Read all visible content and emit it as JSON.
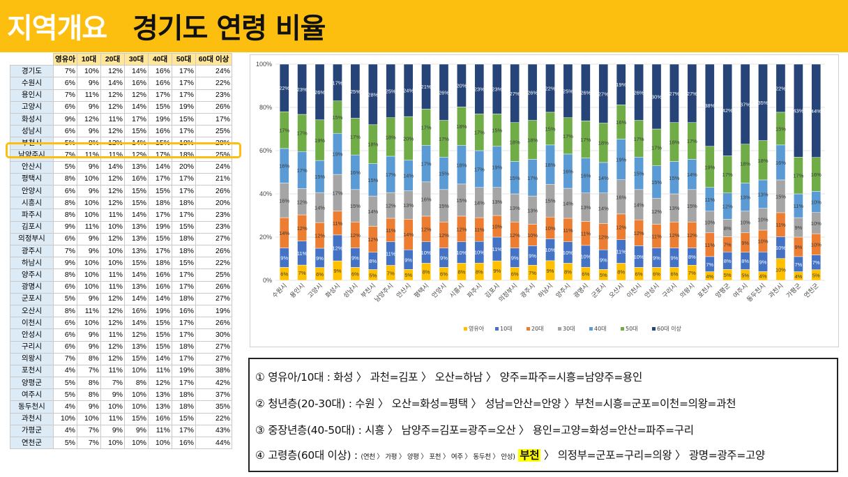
{
  "header": {
    "title_part1": "지역개요",
    "title_part2": "경기도 연령 비율"
  },
  "table": {
    "columns": [
      "영유아",
      "10대",
      "20대",
      "30대",
      "40대",
      "50대",
      "60대 이상"
    ],
    "rows": [
      [
        "경기도",
        "7%",
        "10%",
        "12%",
        "14%",
        "16%",
        "17%",
        "24%"
      ],
      [
        "수원시",
        "6%",
        "9%",
        "14%",
        "16%",
        "16%",
        "17%",
        "22%"
      ],
      [
        "용인시",
        "7%",
        "11%",
        "12%",
        "12%",
        "17%",
        "17%",
        "23%"
      ],
      [
        "고양시",
        "6%",
        "9%",
        "12%",
        "14%",
        "15%",
        "19%",
        "26%"
      ],
      [
        "화성시",
        "9%",
        "12%",
        "11%",
        "17%",
        "19%",
        "15%",
        "17%"
      ],
      [
        "성남시",
        "6%",
        "9%",
        "12%",
        "15%",
        "16%",
        "17%",
        "25%"
      ],
      [
        "부천시",
        "5%",
        "8%",
        "12%",
        "14%",
        "15%",
        "18%",
        "28%"
      ],
      [
        "남양주시",
        "7%",
        "11%",
        "11%",
        "12%",
        "17%",
        "18%",
        "25%"
      ],
      [
        "안산시",
        "5%",
        "9%",
        "14%",
        "13%",
        "14%",
        "20%",
        "24%"
      ],
      [
        "평택시",
        "8%",
        "10%",
        "12%",
        "16%",
        "17%",
        "17%",
        "21%"
      ],
      [
        "안양시",
        "6%",
        "9%",
        "12%",
        "15%",
        "15%",
        "17%",
        "26%"
      ],
      [
        "시흥시",
        "8%",
        "10%",
        "12%",
        "15%",
        "18%",
        "18%",
        "20%"
      ],
      [
        "파주시",
        "8%",
        "10%",
        "11%",
        "14%",
        "17%",
        "17%",
        "23%"
      ],
      [
        "김포시",
        "9%",
        "11%",
        "10%",
        "13%",
        "19%",
        "15%",
        "23%"
      ],
      [
        "의정부시",
        "6%",
        "9%",
        "12%",
        "13%",
        "15%",
        "18%",
        "27%"
      ],
      [
        "광주시",
        "7%",
        "9%",
        "10%",
        "13%",
        "17%",
        "18%",
        "26%"
      ],
      [
        "하남시",
        "9%",
        "10%",
        "10%",
        "15%",
        "18%",
        "15%",
        "22%"
      ],
      [
        "양주시",
        "8%",
        "10%",
        "11%",
        "14%",
        "16%",
        "17%",
        "25%"
      ],
      [
        "광명시",
        "6%",
        "10%",
        "11%",
        "13%",
        "16%",
        "17%",
        "26%"
      ],
      [
        "군포시",
        "5%",
        "9%",
        "12%",
        "14%",
        "14%",
        "18%",
        "27%"
      ],
      [
        "오산시",
        "8%",
        "11%",
        "12%",
        "16%",
        "19%",
        "16%",
        "19%"
      ],
      [
        "이천시",
        "6%",
        "10%",
        "12%",
        "14%",
        "15%",
        "17%",
        "26%"
      ],
      [
        "안성시",
        "6%",
        "9%",
        "11%",
        "12%",
        "15%",
        "17%",
        "30%"
      ],
      [
        "구리시",
        "6%",
        "9%",
        "12%",
        "13%",
        "15%",
        "18%",
        "27%"
      ],
      [
        "의왕시",
        "7%",
        "8%",
        "12%",
        "15%",
        "14%",
        "17%",
        "27%"
      ],
      [
        "포천시",
        "4%",
        "7%",
        "11%",
        "10%",
        "11%",
        "19%",
        "38%"
      ],
      [
        "양평군",
        "5%",
        "8%",
        "7%",
        "8%",
        "12%",
        "17%",
        "42%"
      ],
      [
        "여주시",
        "5%",
        "8%",
        "9%",
        "10%",
        "13%",
        "18%",
        "37%"
      ],
      [
        "동두천시",
        "4%",
        "9%",
        "10%",
        "10%",
        "13%",
        "18%",
        "35%"
      ],
      [
        "과천시",
        "10%",
        "10%",
        "11%",
        "15%",
        "16%",
        "15%",
        "22%"
      ],
      [
        "가평군",
        "4%",
        "7%",
        "9%",
        "9%",
        "11%",
        "17%",
        "43%"
      ],
      [
        "연천군",
        "5%",
        "7%",
        "10%",
        "10%",
        "10%",
        "16%",
        "44%"
      ]
    ]
  },
  "chart_data": {
    "type": "bar",
    "stacked": "percent",
    "categories": [
      "수원시",
      "용인시",
      "고양시",
      "화성시",
      "성남시",
      "부천시",
      "남양주시",
      "안산시",
      "평택시",
      "안양시",
      "시흥시",
      "파주시",
      "김포시",
      "의정부시",
      "광주시",
      "하남시",
      "양주시",
      "광명시",
      "군포시",
      "오산시",
      "이천시",
      "안성시",
      "구리시",
      "의왕시",
      "포천시",
      "양평군",
      "여주시",
      "동두천시",
      "과천시",
      "가평군",
      "연천군"
    ],
    "series": [
      {
        "name": "영유아",
        "color": "#FFC000",
        "values": [
          6,
          7,
          6,
          9,
          6,
          5,
          7,
          5,
          8,
          6,
          8,
          8,
          9,
          6,
          7,
          9,
          8,
          6,
          5,
          8,
          6,
          6,
          6,
          7,
          4,
          5,
          5,
          4,
          10,
          4,
          5
        ]
      },
      {
        "name": "10대",
        "color": "#4472C4",
        "values": [
          9,
          11,
          9,
          12,
          9,
          8,
          11,
          9,
          10,
          9,
          10,
          10,
          11,
          9,
          9,
          10,
          10,
          10,
          9,
          11,
          10,
          9,
          9,
          8,
          7,
          8,
          8,
          9,
          10,
          7,
          7
        ]
      },
      {
        "name": "20대",
        "color": "#ED7D31",
        "values": [
          14,
          12,
          12,
          11,
          12,
          12,
          11,
          14,
          12,
          12,
          12,
          11,
          10,
          12,
          10,
          10,
          11,
          11,
          12,
          12,
          12,
          11,
          12,
          12,
          11,
          7,
          9,
          10,
          11,
          9,
          10
        ]
      },
      {
        "name": "30대",
        "color": "#A5A5A5",
        "values": [
          16,
          12,
          14,
          17,
          15,
          14,
          12,
          13,
          16,
          15,
          15,
          14,
          13,
          13,
          13,
          15,
          14,
          13,
          14,
          16,
          14,
          12,
          13,
          15,
          10,
          8,
          10,
          10,
          15,
          9,
          10
        ]
      },
      {
        "name": "40대",
        "color": "#5B9BD5",
        "values": [
          16,
          17,
          15,
          19,
          16,
          15,
          17,
          14,
          17,
          15,
          18,
          17,
          19,
          15,
          17,
          18,
          16,
          16,
          14,
          19,
          15,
          15,
          15,
          14,
          11,
          12,
          13,
          13,
          16,
          11,
          10
        ]
      },
      {
        "name": "50대",
        "color": "#70AD47",
        "values": [
          17,
          17,
          19,
          15,
          17,
          18,
          18,
          20,
          17,
          17,
          18,
          17,
          15,
          18,
          18,
          15,
          17,
          17,
          18,
          16,
          17,
          17,
          18,
          17,
          19,
          17,
          18,
          18,
          15,
          17,
          16
        ]
      },
      {
        "name": "60대 이상",
        "color": "#264478",
        "values": [
          22,
          23,
          26,
          17,
          25,
          28,
          25,
          24,
          21,
          26,
          20,
          23,
          23,
          27,
          26,
          22,
          25,
          26,
          27,
          19,
          26,
          30,
          27,
          27,
          38,
          42,
          37,
          35,
          22,
          43,
          44
        ]
      }
    ],
    "y_ticks": [
      "0%",
      "20%",
      "40%",
      "60%",
      "80%",
      "100%"
    ],
    "ylim": [
      0,
      100
    ],
    "legend_position": "bottom"
  },
  "notes": {
    "line1": "① 영유아/10대 : 화성 〉 과천=김포 〉 오산=하남 〉 양주=파주=시흥=남양주=용인",
    "line2": "② 청년층(20-30대) : 수원 〉 오산=화성=평택 〉 성남=안산=안양 〉부천=시흥=군포=이천=의왕=과천",
    "line3": "③ 중장년층(40-50대) : 시흥 〉 남양주=김포=광주=오산 〉 용인=고양=화성=안산=파주=구리",
    "line4_prefix": "④ 고령층(60대 이상) : ",
    "line4_small": "(연천 〉 가평 〉 양평 〉 포천 〉 여주 〉 동두천 〉 안성)",
    "line4_highlight": "부천",
    "line4_suffix": " 〉 의정부=군포=구리=의왕 〉 광명=광주=고양"
  }
}
